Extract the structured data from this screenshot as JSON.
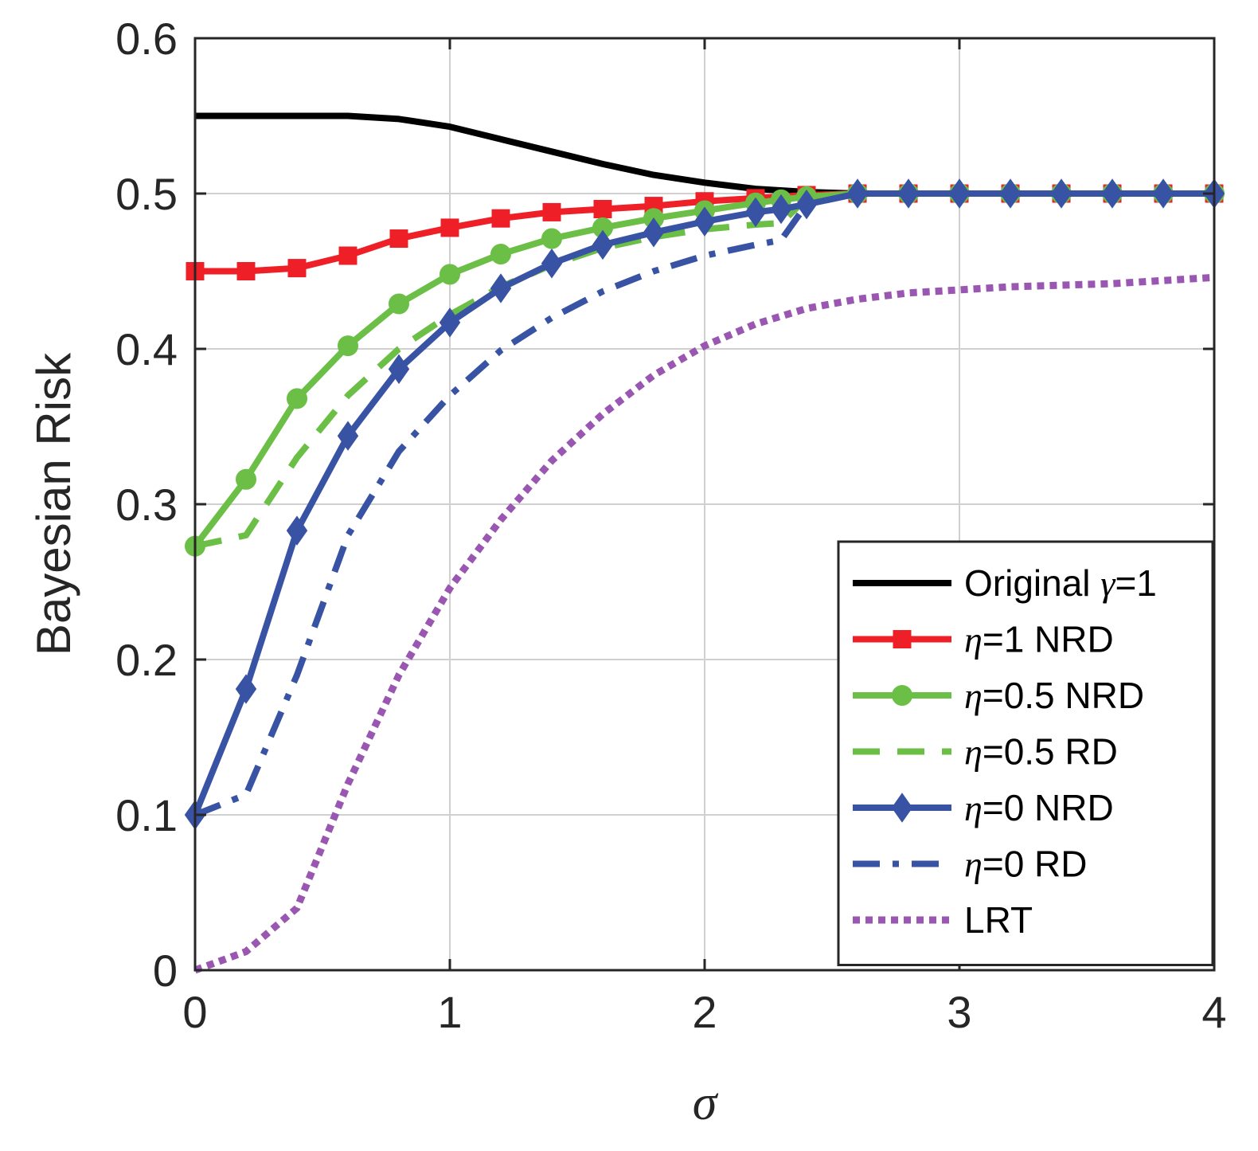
{
  "chart_data": {
    "type": "line",
    "title": "",
    "xlabel": "σ",
    "ylabel": "Bayesian Risk",
    "xlim": [
      0,
      4
    ],
    "ylim": [
      0,
      0.6
    ],
    "xticks": [
      0,
      1,
      2,
      3,
      4
    ],
    "xtick_labels": [
      "0",
      "1",
      "2",
      "3",
      "4"
    ],
    "yticks": [
      0,
      0.1,
      0.2,
      0.3,
      0.4,
      0.5,
      0.6
    ],
    "ytick_labels": [
      "0",
      "0.1",
      "0.2",
      "0.3",
      "0.4",
      "0.5",
      "0.6"
    ],
    "grid": true,
    "legend_position": "bottom-right",
    "series": [
      {
        "name": "Original γ=1",
        "legend_symbol": "γ",
        "legend_text": "=1",
        "legend_prefix": "Original ",
        "color": "#000000",
        "style": "solid",
        "marker": "none",
        "x": [
          0,
          0.2,
          0.4,
          0.6,
          0.8,
          1.0,
          1.2,
          1.4,
          1.6,
          1.8,
          2.0,
          2.2,
          2.4,
          2.6,
          2.8,
          3.0,
          3.2,
          3.4,
          3.6,
          3.8,
          4.0
        ],
        "y": [
          0.55,
          0.55,
          0.55,
          0.55,
          0.548,
          0.543,
          0.535,
          0.527,
          0.519,
          0.512,
          0.507,
          0.503,
          0.501,
          0.5,
          0.5,
          0.5,
          0.5,
          0.5,
          0.5,
          0.5,
          0.5
        ]
      },
      {
        "name": "η=1 NRD",
        "legend_symbol": "η",
        "legend_text": "=1 NRD",
        "legend_prefix": "",
        "color": "#ee1f26",
        "style": "solid",
        "marker": "square",
        "x": [
          0,
          0.2,
          0.4,
          0.6,
          0.8,
          1.0,
          1.2,
          1.4,
          1.6,
          1.8,
          2.0,
          2.2,
          2.4,
          2.6,
          2.8,
          3.0,
          3.2,
          3.4,
          3.6,
          3.8,
          4.0
        ],
        "y": [
          0.45,
          0.45,
          0.452,
          0.46,
          0.471,
          0.478,
          0.484,
          0.488,
          0.49,
          0.492,
          0.495,
          0.497,
          0.499,
          0.5,
          0.5,
          0.5,
          0.5,
          0.5,
          0.5,
          0.5,
          0.5
        ]
      },
      {
        "name": "η=0.5 NRD",
        "legend_symbol": "η",
        "legend_text": "=0.5 NRD",
        "legend_prefix": "",
        "color": "#6cbf46",
        "style": "solid",
        "marker": "circle",
        "x": [
          0,
          0.2,
          0.4,
          0.6,
          0.8,
          1.0,
          1.2,
          1.4,
          1.6,
          1.8,
          2.0,
          2.2,
          2.3,
          2.4,
          2.6,
          2.8,
          3.0,
          3.2,
          3.4,
          3.6,
          3.8,
          4.0
        ],
        "y": [
          0.273,
          0.316,
          0.368,
          0.402,
          0.429,
          0.448,
          0.461,
          0.471,
          0.478,
          0.484,
          0.489,
          0.494,
          0.496,
          0.498,
          0.5,
          0.5,
          0.5,
          0.5,
          0.5,
          0.5,
          0.5,
          0.5
        ]
      },
      {
        "name": "η=0.5 RD",
        "legend_symbol": "η",
        "legend_text": "=0.5 RD",
        "legend_prefix": "",
        "color": "#6cbf46",
        "style": "dashed",
        "marker": "none",
        "x": [
          0,
          0.2,
          0.4,
          0.6,
          0.8,
          1.0,
          1.2,
          1.4,
          1.6,
          1.8,
          2.0,
          2.2,
          2.3,
          2.4,
          2.6,
          2.8,
          3.0,
          3.2,
          3.4,
          3.6,
          3.8,
          4.0
        ],
        "y": [
          0.273,
          0.28,
          0.33,
          0.37,
          0.4,
          0.422,
          0.44,
          0.454,
          0.465,
          0.472,
          0.477,
          0.48,
          0.481,
          0.497,
          0.5,
          0.5,
          0.5,
          0.5,
          0.5,
          0.5,
          0.5,
          0.5
        ]
      },
      {
        "name": "η=0 NRD",
        "legend_symbol": "η",
        "legend_text": "=0 NRD",
        "legend_prefix": "",
        "color": "#3953a4",
        "style": "solid",
        "marker": "diamond",
        "x": [
          0,
          0.2,
          0.4,
          0.6,
          0.8,
          1.0,
          1.2,
          1.4,
          1.6,
          1.8,
          2.0,
          2.2,
          2.3,
          2.4,
          2.6,
          2.8,
          3.0,
          3.2,
          3.4,
          3.6,
          3.8,
          4.0
        ],
        "y": [
          0.1,
          0.181,
          0.283,
          0.344,
          0.387,
          0.417,
          0.439,
          0.455,
          0.467,
          0.475,
          0.482,
          0.488,
          0.49,
          0.493,
          0.5,
          0.5,
          0.5,
          0.5,
          0.5,
          0.5,
          0.5,
          0.5
        ]
      },
      {
        "name": "η=0 RD",
        "legend_symbol": "η",
        "legend_text": "=0 RD",
        "legend_prefix": "",
        "color": "#3953a4",
        "style": "dashdot",
        "marker": "none",
        "x": [
          0,
          0.2,
          0.4,
          0.6,
          0.8,
          1.0,
          1.2,
          1.4,
          1.6,
          1.8,
          2.0,
          2.2,
          2.3,
          2.4,
          2.6,
          2.8,
          3.0,
          3.2,
          3.4,
          3.6,
          3.8,
          4.0
        ],
        "y": [
          0.1,
          0.113,
          0.19,
          0.28,
          0.334,
          0.37,
          0.399,
          0.42,
          0.437,
          0.45,
          0.46,
          0.467,
          0.47,
          0.493,
          0.5,
          0.5,
          0.5,
          0.5,
          0.5,
          0.5,
          0.5,
          0.5
        ]
      },
      {
        "name": "LRT",
        "legend_symbol": "",
        "legend_text": "LRT",
        "legend_prefix": "",
        "color": "#9a57b1",
        "style": "dotted",
        "marker": "none",
        "x": [
          0,
          0.2,
          0.4,
          0.6,
          0.8,
          1.0,
          1.2,
          1.4,
          1.6,
          1.8,
          2.0,
          2.2,
          2.4,
          2.6,
          2.8,
          3.0,
          3.2,
          3.4,
          3.6,
          3.8,
          4.0
        ],
        "y": [
          0,
          0.012,
          0.04,
          0.12,
          0.19,
          0.246,
          0.29,
          0.328,
          0.358,
          0.383,
          0.402,
          0.416,
          0.426,
          0.432,
          0.436,
          0.438,
          0.44,
          0.441,
          0.442,
          0.444,
          0.446
        ]
      }
    ]
  }
}
